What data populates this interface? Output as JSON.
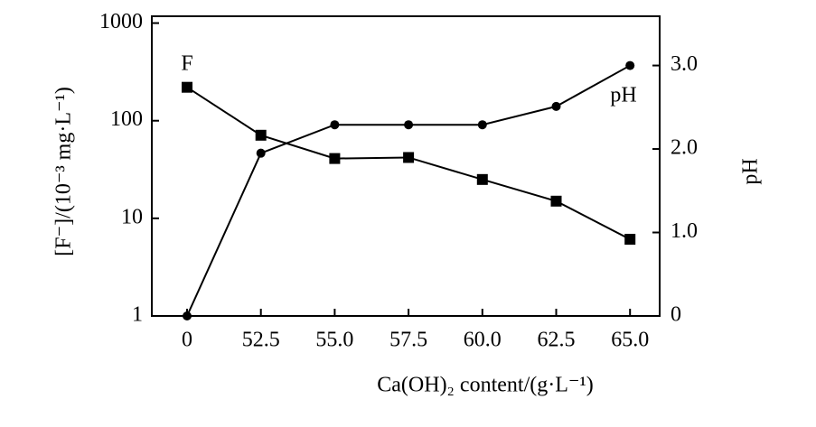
{
  "chart_data": {
    "type": "line",
    "x_label": "Ca(OH)₂ content/(g·L⁻¹)",
    "y_label": "[F⁻]/(10⁻³ mg·L⁻¹)",
    "y2_label": "pH",
    "annotations": [
      "F",
      "pH"
    ],
    "categories": [
      "0",
      "52.5",
      "55.0",
      "57.5",
      "60.0",
      "62.5",
      "65.0"
    ],
    "series": [
      {
        "name": "F",
        "color": "#000000",
        "marker": "square",
        "values": [
          220,
          71,
          41,
          42,
          25,
          15,
          6.1
        ]
      },
      {
        "name": "pH",
        "color": "#000000",
        "marker": "circle",
        "axis": "y2",
        "values": [
          0,
          1.95,
          2.29,
          2.29,
          2.29,
          2.51,
          3.0
        ]
      }
    ],
    "ylog": true,
    "ylim": [
      1,
      1175
    ],
    "yticks": [
      1,
      10,
      100,
      1000
    ],
    "y2lim": [
      0,
      3.59
    ],
    "y2ticks": [
      0,
      {
        "value": 1,
        "label": "1.0"
      },
      {
        "value": 2,
        "label": "2.0"
      },
      {
        "value": 3,
        "label": "3.0"
      }
    ]
  }
}
